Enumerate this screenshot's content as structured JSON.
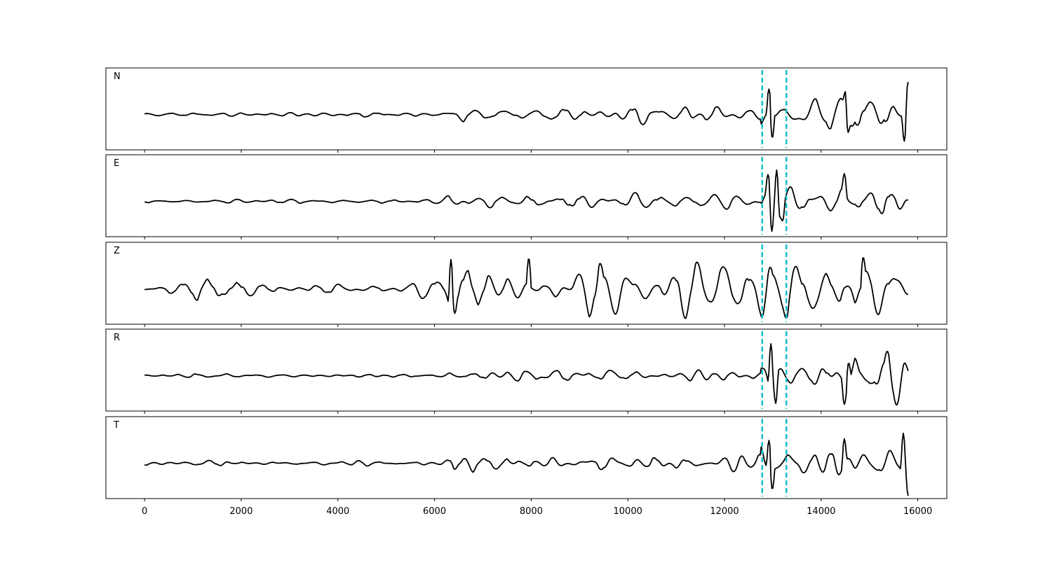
{
  "chart_data": {
    "type": "line",
    "x_ticks": [
      0,
      2000,
      4000,
      6000,
      8000,
      10000,
      12000,
      14000,
      16000
    ],
    "xlim": [
      -800,
      16600
    ],
    "n_samples": 15800,
    "markers": {
      "color": "#17becf",
      "x": [
        12780,
        13280
      ]
    },
    "trace_color": "#000000",
    "panels": [
      {
        "label": "N",
        "series": {
          "seed": 11,
          "base_amp": 0.05,
          "pre_event_amp": 0.16,
          "post_event_amp": 0.36,
          "spikes": [
            {
              "x": 12920,
              "value": 0.78
            },
            {
              "x": 12990,
              "value": -0.72
            },
            {
              "x": 14500,
              "value": 0.7
            },
            {
              "x": 14560,
              "value": -0.55
            },
            {
              "x": 15720,
              "value": -0.82
            },
            {
              "x": 15800,
              "value": 1.0
            }
          ]
        }
      },
      {
        "label": "E",
        "series": {
          "seed": 23,
          "base_amp": 0.05,
          "pre_event_amp": 0.14,
          "post_event_amp": 0.38,
          "spikes": [
            {
              "x": 12900,
              "value": 0.82
            },
            {
              "x": 12980,
              "value": -0.92
            },
            {
              "x": 13080,
              "value": 0.96
            },
            {
              "x": 13200,
              "value": -0.6
            },
            {
              "x": 14480,
              "value": 0.85
            }
          ]
        }
      },
      {
        "label": "Z",
        "series": {
          "seed": 37,
          "base_amp": 0.18,
          "pre_event_amp": 0.58,
          "post_event_amp": 0.62,
          "spikes": [
            {
              "x": 6340,
              "value": 0.9
            },
            {
              "x": 6420,
              "value": -0.75
            },
            {
              "x": 7950,
              "value": 0.95
            },
            {
              "x": 14870,
              "value": 0.98
            },
            {
              "x": 13280,
              "value": -0.9
            }
          ]
        }
      },
      {
        "label": "R",
        "series": {
          "seed": 53,
          "base_amp": 0.04,
          "pre_event_amp": 0.13,
          "post_event_amp": 0.36,
          "spikes": [
            {
              "x": 12960,
              "value": 0.98
            },
            {
              "x": 13060,
              "value": -0.85
            },
            {
              "x": 14480,
              "value": -0.88
            },
            {
              "x": 14570,
              "value": 0.4
            }
          ]
        }
      },
      {
        "label": "T",
        "series": {
          "seed": 71,
          "base_amp": 0.05,
          "pre_event_amp": 0.15,
          "post_event_amp": 0.33,
          "spikes": [
            {
              "x": 12920,
              "value": 0.7
            },
            {
              "x": 12990,
              "value": -0.8
            },
            {
              "x": 14480,
              "value": 0.75
            },
            {
              "x": 15700,
              "value": 0.92
            },
            {
              "x": 15800,
              "value": -1.0
            }
          ]
        }
      }
    ]
  }
}
